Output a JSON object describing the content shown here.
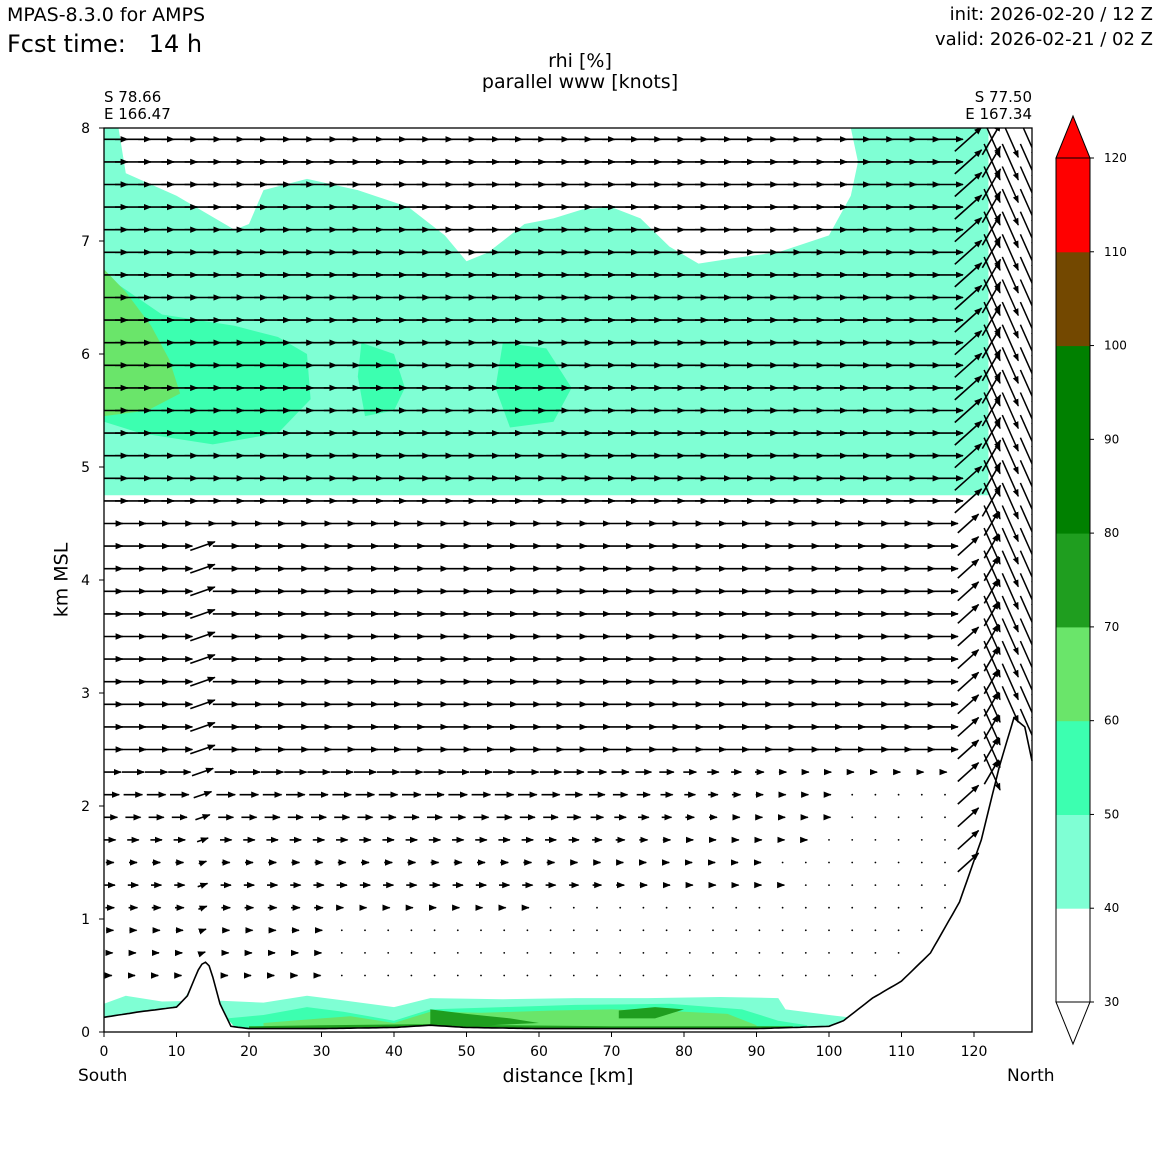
{
  "header": {
    "model": "MPAS-8.3.0 for AMPS",
    "fcst_time": "Fcst time:   14 h",
    "init": "init: 2026-02-20 / 12 Z",
    "valid": "valid: 2026-02-21 / 02 Z"
  },
  "chart_data": {
    "type": "heatmap",
    "title": "rhi [%]",
    "subtitle": "parallel www [knots]",
    "xlabel": "distance [km]",
    "ylabel": "km MSL",
    "xlim": [
      0,
      128
    ],
    "ylim": [
      0,
      8
    ],
    "x_ticks": [
      "0",
      "10",
      "20",
      "30",
      "40",
      "50",
      "60",
      "70",
      "80",
      "90",
      "100",
      "110",
      "120"
    ],
    "y_ticks": [
      "0",
      "1",
      "2",
      "3",
      "4",
      "5",
      "6",
      "7",
      "8"
    ],
    "start_point": {
      "lat": "S 78.66",
      "lon": "E 166.47"
    },
    "end_point": {
      "lat": "S 77.50",
      "lon": "E 167.34"
    },
    "south_label": "South",
    "north_label": "North",
    "colorbar": {
      "levels": [
        "30",
        "40",
        "50",
        "60",
        "70",
        "80",
        "90",
        "100",
        "110",
        "120"
      ],
      "colors": [
        "#ffffff",
        "#7fffd4",
        "#3cffb0",
        "#6ae56a",
        "#1f9e1f",
        "#008000",
        "#008000",
        "#734800",
        "#ff0000"
      ]
    },
    "rhi_regions": [
      {
        "level": "40-50",
        "color": "#7fffd4",
        "x_range": [
          0,
          122
        ],
        "z_range": [
          4.75,
          8.0
        ]
      },
      {
        "level": "50-60",
        "color": "#3cffb0",
        "x_range": [
          0,
          28
        ],
        "z_range": [
          5.3,
          6.4
        ]
      },
      {
        "level": "60-70",
        "color": "#6ae56a",
        "x_range": [
          0,
          10
        ],
        "z_range": [
          5.5,
          6.7
        ]
      },
      {
        "level": "40-80",
        "color": "#6ae56a",
        "x_range": [
          0,
          104
        ],
        "z_range": [
          0.0,
          0.3
        ]
      }
    ],
    "terrain": {
      "x": [
        0,
        5,
        10,
        11.5,
        13,
        13.8,
        14.6,
        16,
        17.5,
        20,
        30,
        40,
        45,
        50,
        60,
        70,
        80,
        90,
        100,
        102,
        106,
        110,
        114,
        118,
        121,
        123.5,
        125.5,
        127,
        128
      ],
      "z": [
        0.13,
        0.18,
        0.22,
        0.32,
        0.55,
        0.63,
        0.58,
        0.25,
        0.05,
        0.03,
        0.03,
        0.04,
        0.06,
        0.04,
        0.03,
        0.03,
        0.03,
        0.03,
        0.05,
        0.1,
        0.3,
        0.45,
        0.7,
        1.15,
        1.7,
        2.35,
        2.78,
        2.7,
        2.4
      ]
    },
    "wind_rows_km": [
      0.5,
      0.7,
      0.9,
      1.1,
      1.3,
      1.5,
      1.7,
      1.9,
      2.1,
      2.3,
      2.5,
      2.7,
      2.9,
      3.1,
      3.3,
      3.5,
      3.7,
      3.9,
      4.1,
      4.3,
      4.5,
      4.7,
      4.9,
      5.1,
      5.3,
      5.5,
      5.7,
      5.9,
      6.1,
      6.3,
      6.5,
      6.7,
      6.9,
      7.1,
      7.3,
      7.5,
      7.7,
      7.9
    ]
  }
}
